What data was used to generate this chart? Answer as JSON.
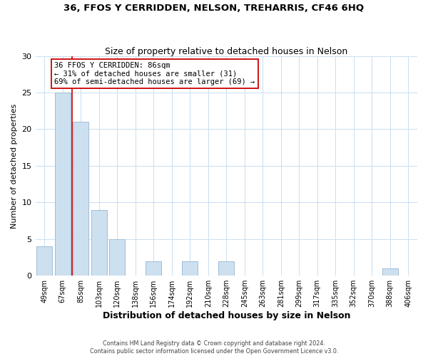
{
  "title": "36, FFOS Y CERRIDDEN, NELSON, TREHARRIS, CF46 6HQ",
  "subtitle": "Size of property relative to detached houses in Nelson",
  "xlabel": "Distribution of detached houses by size in Nelson",
  "ylabel": "Number of detached properties",
  "bar_labels": [
    "49sqm",
    "67sqm",
    "85sqm",
    "103sqm",
    "120sqm",
    "138sqm",
    "156sqm",
    "174sqm",
    "192sqm",
    "210sqm",
    "228sqm",
    "245sqm",
    "263sqm",
    "281sqm",
    "299sqm",
    "317sqm",
    "335sqm",
    "352sqm",
    "370sqm",
    "388sqm",
    "406sqm"
  ],
  "bar_values": [
    4,
    25,
    21,
    9,
    5,
    0,
    2,
    0,
    2,
    0,
    2,
    0,
    0,
    0,
    0,
    0,
    0,
    0,
    0,
    1,
    0
  ],
  "bar_color": "#cde0f0",
  "bar_edge_color": "#a0bcd4",
  "property_line_color": "#cc0000",
  "annotation_text": "36 FFOS Y CERRIDDEN: 86sqm\n← 31% of detached houses are smaller (31)\n69% of semi-detached houses are larger (69) →",
  "annotation_box_color": "#ffffff",
  "annotation_box_edge": "#cc0000",
  "ylim": [
    0,
    30
  ],
  "yticks": [
    0,
    5,
    10,
    15,
    20,
    25,
    30
  ],
  "footer_line1": "Contains HM Land Registry data © Crown copyright and database right 2024.",
  "footer_line2": "Contains public sector information licensed under the Open Government Licence v3.0.",
  "background_color": "#ffffff",
  "grid_color": "#c8dff0"
}
